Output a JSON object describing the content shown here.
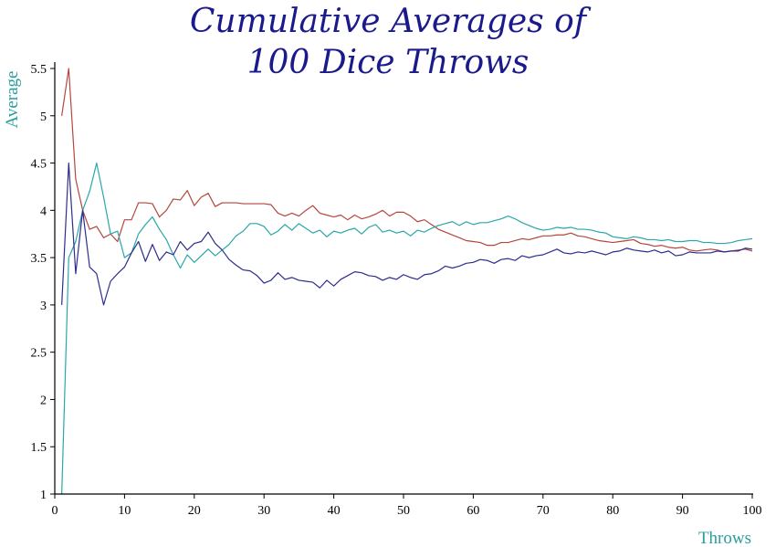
{
  "chart_data": {
    "type": "line",
    "title": [
      "Cumulative Averages of",
      "100 Dice Throws"
    ],
    "xlabel": "Throws",
    "ylabel": "Average",
    "xlim": [
      0,
      100
    ],
    "ylim": [
      1,
      5.5
    ],
    "xticks": [
      0,
      10,
      20,
      30,
      40,
      50,
      60,
      70,
      80,
      90,
      100
    ],
    "yticks": [
      1,
      1.5,
      2,
      2.5,
      3,
      3.5,
      4,
      4.5,
      5,
      5.5
    ],
    "grid": false,
    "legend": false,
    "series": [
      {
        "color": "#b5463f",
        "points": [
          [
            1,
            5.0
          ],
          [
            2,
            5.5
          ],
          [
            3,
            4.33
          ],
          [
            4,
            4.0
          ],
          [
            5,
            3.8
          ],
          [
            6,
            3.83
          ],
          [
            7,
            3.71
          ],
          [
            8,
            3.75
          ],
          [
            9,
            3.67
          ],
          [
            10,
            3.9
          ],
          [
            11,
            3.9
          ],
          [
            12,
            4.08
          ],
          [
            13,
            4.08
          ],
          [
            14,
            4.07
          ],
          [
            15,
            3.93
          ],
          [
            16,
            4.0
          ],
          [
            17,
            4.12
          ],
          [
            18,
            4.11
          ],
          [
            19,
            4.21
          ],
          [
            20,
            4.05
          ],
          [
            21,
            4.14
          ],
          [
            22,
            4.18
          ],
          [
            23,
            4.04
          ],
          [
            24,
            4.08
          ],
          [
            25,
            4.08
          ],
          [
            26,
            4.08
          ],
          [
            27,
            4.07
          ],
          [
            28,
            4.07
          ],
          [
            29,
            4.07
          ],
          [
            30,
            4.07
          ],
          [
            31,
            4.06
          ],
          [
            32,
            3.97
          ],
          [
            33,
            3.94
          ],
          [
            34,
            3.97
          ],
          [
            35,
            3.94
          ],
          [
            36,
            4.0
          ],
          [
            37,
            4.05
          ],
          [
            38,
            3.97
          ],
          [
            39,
            3.95
          ],
          [
            40,
            3.93
          ],
          [
            41,
            3.95
          ],
          [
            42,
            3.9
          ],
          [
            43,
            3.95
          ],
          [
            44,
            3.91
          ],
          [
            45,
            3.93
          ],
          [
            46,
            3.96
          ],
          [
            47,
            4.0
          ],
          [
            48,
            3.94
          ],
          [
            49,
            3.98
          ],
          [
            50,
            3.98
          ],
          [
            51,
            3.94
          ],
          [
            52,
            3.88
          ],
          [
            53,
            3.9
          ],
          [
            54,
            3.85
          ],
          [
            55,
            3.8
          ],
          [
            56,
            3.77
          ],
          [
            57,
            3.74
          ],
          [
            58,
            3.71
          ],
          [
            59,
            3.68
          ],
          [
            60,
            3.67
          ],
          [
            61,
            3.66
          ],
          [
            62,
            3.63
          ],
          [
            63,
            3.63
          ],
          [
            64,
            3.66
          ],
          [
            65,
            3.66
          ],
          [
            66,
            3.68
          ],
          [
            67,
            3.7
          ],
          [
            68,
            3.69
          ],
          [
            69,
            3.71
          ],
          [
            70,
            3.73
          ],
          [
            71,
            3.73
          ],
          [
            72,
            3.74
          ],
          [
            73,
            3.74
          ],
          [
            74,
            3.76
          ],
          [
            75,
            3.73
          ],
          [
            76,
            3.72
          ],
          [
            77,
            3.7
          ],
          [
            78,
            3.68
          ],
          [
            79,
            3.67
          ],
          [
            80,
            3.66
          ],
          [
            81,
            3.67
          ],
          [
            82,
            3.68
          ],
          [
            83,
            3.69
          ],
          [
            84,
            3.65
          ],
          [
            85,
            3.64
          ],
          [
            86,
            3.62
          ],
          [
            87,
            3.63
          ],
          [
            88,
            3.61
          ],
          [
            89,
            3.6
          ],
          [
            90,
            3.61
          ],
          [
            91,
            3.58
          ],
          [
            92,
            3.57
          ],
          [
            93,
            3.58
          ],
          [
            94,
            3.59
          ],
          [
            95,
            3.58
          ],
          [
            96,
            3.56
          ],
          [
            97,
            3.57
          ],
          [
            98,
            3.58
          ],
          [
            99,
            3.59
          ],
          [
            100,
            3.57
          ]
        ]
      },
      {
        "color": "#2aa7a7",
        "points": [
          [
            1,
            1.0
          ],
          [
            2,
            3.5
          ],
          [
            3,
            3.67
          ],
          [
            4,
            4.0
          ],
          [
            5,
            4.2
          ],
          [
            6,
            4.5
          ],
          [
            7,
            4.14
          ],
          [
            8,
            3.75
          ],
          [
            9,
            3.78
          ],
          [
            10,
            3.5
          ],
          [
            11,
            3.55
          ],
          [
            12,
            3.75
          ],
          [
            13,
            3.85
          ],
          [
            14,
            3.93
          ],
          [
            15,
            3.8
          ],
          [
            16,
            3.69
          ],
          [
            17,
            3.53
          ],
          [
            18,
            3.39
          ],
          [
            19,
            3.53
          ],
          [
            20,
            3.45
          ],
          [
            21,
            3.52
          ],
          [
            22,
            3.59
          ],
          [
            23,
            3.52
          ],
          [
            24,
            3.58
          ],
          [
            25,
            3.64
          ],
          [
            26,
            3.73
          ],
          [
            27,
            3.78
          ],
          [
            28,
            3.86
          ],
          [
            29,
            3.86
          ],
          [
            30,
            3.83
          ],
          [
            31,
            3.74
          ],
          [
            32,
            3.78
          ],
          [
            33,
            3.85
          ],
          [
            34,
            3.79
          ],
          [
            35,
            3.86
          ],
          [
            36,
            3.81
          ],
          [
            37,
            3.76
          ],
          [
            38,
            3.79
          ],
          [
            39,
            3.72
          ],
          [
            40,
            3.78
          ],
          [
            41,
            3.76
          ],
          [
            42,
            3.79
          ],
          [
            43,
            3.81
          ],
          [
            44,
            3.75
          ],
          [
            45,
            3.82
          ],
          [
            46,
            3.85
          ],
          [
            47,
            3.77
          ],
          [
            48,
            3.79
          ],
          [
            49,
            3.76
          ],
          [
            50,
            3.78
          ],
          [
            51,
            3.73
          ],
          [
            52,
            3.79
          ],
          [
            53,
            3.77
          ],
          [
            54,
            3.81
          ],
          [
            55,
            3.84
          ],
          [
            56,
            3.86
          ],
          [
            57,
            3.88
          ],
          [
            58,
            3.84
          ],
          [
            59,
            3.88
          ],
          [
            60,
            3.85
          ],
          [
            61,
            3.87
          ],
          [
            62,
            3.87
          ],
          [
            63,
            3.89
          ],
          [
            64,
            3.91
          ],
          [
            65,
            3.94
          ],
          [
            66,
            3.91
          ],
          [
            67,
            3.87
          ],
          [
            68,
            3.84
          ],
          [
            69,
            3.81
          ],
          [
            70,
            3.79
          ],
          [
            71,
            3.8
          ],
          [
            72,
            3.82
          ],
          [
            73,
            3.81
          ],
          [
            74,
            3.82
          ],
          [
            75,
            3.8
          ],
          [
            76,
            3.8
          ],
          [
            77,
            3.79
          ],
          [
            78,
            3.77
          ],
          [
            79,
            3.76
          ],
          [
            80,
            3.72
          ],
          [
            81,
            3.71
          ],
          [
            82,
            3.7
          ],
          [
            83,
            3.72
          ],
          [
            84,
            3.71
          ],
          [
            85,
            3.69
          ],
          [
            86,
            3.69
          ],
          [
            87,
            3.68
          ],
          [
            88,
            3.69
          ],
          [
            89,
            3.67
          ],
          [
            90,
            3.67
          ],
          [
            91,
            3.68
          ],
          [
            92,
            3.68
          ],
          [
            93,
            3.66
          ],
          [
            94,
            3.66
          ],
          [
            95,
            3.65
          ],
          [
            96,
            3.65
          ],
          [
            97,
            3.66
          ],
          [
            98,
            3.68
          ],
          [
            99,
            3.69
          ],
          [
            100,
            3.7
          ]
        ]
      },
      {
        "color": "#2d2d8f",
        "points": [
          [
            1,
            3.0
          ],
          [
            2,
            4.5
          ],
          [
            3,
            3.33
          ],
          [
            4,
            4.0
          ],
          [
            5,
            3.4
          ],
          [
            6,
            3.33
          ],
          [
            7,
            3.0
          ],
          [
            8,
            3.25
          ],
          [
            9,
            3.33
          ],
          [
            10,
            3.4
          ],
          [
            11,
            3.55
          ],
          [
            12,
            3.67
          ],
          [
            13,
            3.46
          ],
          [
            14,
            3.64
          ],
          [
            15,
            3.47
          ],
          [
            16,
            3.56
          ],
          [
            17,
            3.53
          ],
          [
            18,
            3.67
          ],
          [
            19,
            3.58
          ],
          [
            20,
            3.65
          ],
          [
            21,
            3.67
          ],
          [
            22,
            3.77
          ],
          [
            23,
            3.65
          ],
          [
            24,
            3.58
          ],
          [
            25,
            3.48
          ],
          [
            26,
            3.42
          ],
          [
            27,
            3.37
          ],
          [
            28,
            3.36
          ],
          [
            29,
            3.31
          ],
          [
            30,
            3.23
          ],
          [
            31,
            3.26
          ],
          [
            32,
            3.34
          ],
          [
            33,
            3.27
          ],
          [
            34,
            3.29
          ],
          [
            35,
            3.26
          ],
          [
            36,
            3.25
          ],
          [
            37,
            3.24
          ],
          [
            38,
            3.18
          ],
          [
            39,
            3.26
          ],
          [
            40,
            3.2
          ],
          [
            41,
            3.27
          ],
          [
            42,
            3.31
          ],
          [
            43,
            3.35
          ],
          [
            44,
            3.34
          ],
          [
            45,
            3.31
          ],
          [
            46,
            3.3
          ],
          [
            47,
            3.26
          ],
          [
            48,
            3.29
          ],
          [
            49,
            3.27
          ],
          [
            50,
            3.32
          ],
          [
            51,
            3.29
          ],
          [
            52,
            3.27
          ],
          [
            53,
            3.32
          ],
          [
            54,
            3.33
          ],
          [
            55,
            3.36
          ],
          [
            56,
            3.41
          ],
          [
            57,
            3.39
          ],
          [
            58,
            3.41
          ],
          [
            59,
            3.44
          ],
          [
            60,
            3.45
          ],
          [
            61,
            3.48
          ],
          [
            62,
            3.47
          ],
          [
            63,
            3.44
          ],
          [
            64,
            3.48
          ],
          [
            65,
            3.49
          ],
          [
            66,
            3.47
          ],
          [
            67,
            3.52
          ],
          [
            68,
            3.5
          ],
          [
            69,
            3.52
          ],
          [
            70,
            3.53
          ],
          [
            71,
            3.56
          ],
          [
            72,
            3.59
          ],
          [
            73,
            3.55
          ],
          [
            74,
            3.54
          ],
          [
            75,
            3.56
          ],
          [
            76,
            3.55
          ],
          [
            77,
            3.57
          ],
          [
            78,
            3.55
          ],
          [
            79,
            3.53
          ],
          [
            80,
            3.56
          ],
          [
            81,
            3.57
          ],
          [
            82,
            3.6
          ],
          [
            83,
            3.58
          ],
          [
            84,
            3.57
          ],
          [
            85,
            3.56
          ],
          [
            86,
            3.58
          ],
          [
            87,
            3.55
          ],
          [
            88,
            3.57
          ],
          [
            89,
            3.52
          ],
          [
            90,
            3.53
          ],
          [
            91,
            3.56
          ],
          [
            92,
            3.55
          ],
          [
            93,
            3.55
          ],
          [
            94,
            3.55
          ],
          [
            95,
            3.57
          ],
          [
            96,
            3.56
          ],
          [
            97,
            3.57
          ],
          [
            98,
            3.57
          ],
          [
            99,
            3.6
          ],
          [
            100,
            3.59
          ]
        ]
      }
    ]
  }
}
